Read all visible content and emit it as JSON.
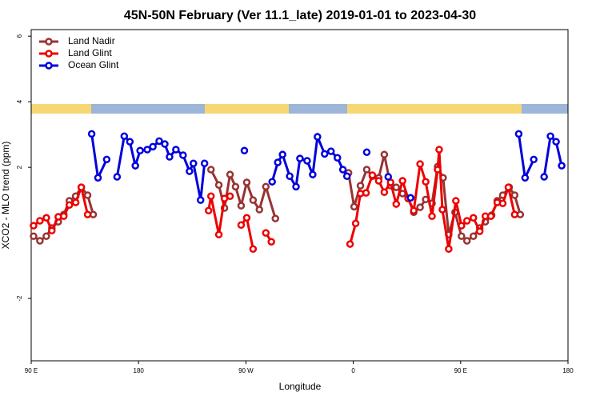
{
  "chart_data": {
    "type": "line",
    "title": "45N-50N February (Ver 11.1_late)   2019-01-01 to 2023-04-30",
    "x_label": "Longitude",
    "y_label": "XCO2 - MLO trend (ppm)",
    "xlim": [
      90,
      540
    ],
    "ylim": [
      -3.9,
      6.2
    ],
    "xticks": [
      {
        "value": 90,
        "label": "90 E"
      },
      180,
      {
        "value": 270,
        "label": "90 W"
      },
      {
        "value": 360,
        "label": "0"
      },
      {
        "value": 450,
        "label": "90 E"
      },
      {
        "value": 540,
        "label": "180"
      }
    ],
    "yticks": [
      6,
      4,
      2,
      -2
    ],
    "legend": "top-left",
    "series": [
      {
        "name": "Land Nadir",
        "color": "#993333",
        "x": [
          92,
          97.3,
          102.7,
          107.3,
          112.7,
          117.3,
          122,
          127.3,
          132,
          137.3,
          142,
          null,
          240.7,
          247.3,
          252,
          256.7,
          261.3,
          266,
          270.7,
          276,
          281.3,
          286.7,
          294.7,
          null,
          356,
          360.7,
          366,
          371.3,
          376,
          381.3,
          386,
          391.3,
          396,
          401.3,
          406,
          410.7,
          416,
          420.7,
          426,
          430.7,
          435.3,
          440,
          445.3,
          450.7,
          455.3,
          460.7,
          466,
          470.7,
          476,
          480.7,
          485.3,
          490.7,
          495.3,
          500
        ],
        "values": [
          -0.1,
          -0.24,
          -0.1,
          0.15,
          0.34,
          0.56,
          0.98,
          1.12,
          1.39,
          1.15,
          0.56,
          null,
          1.93,
          1.46,
          0.76,
          1.78,
          1.41,
          0.83,
          1.54,
          1.0,
          0.71,
          1.41,
          0.44,
          null,
          1.83,
          0.8,
          1.44,
          1.93,
          1.73,
          1.68,
          2.39,
          1.44,
          1.39,
          1.2,
          1.05,
          0.63,
          0.78,
          1.02,
          0.9,
          2.02,
          1.68,
          -0.05,
          0.63,
          -0.1,
          -0.24,
          -0.1,
          0.15,
          0.34,
          0.54,
          0.98,
          1.15,
          1.39,
          1.15,
          0.56
        ]
      },
      {
        "name": "Land Glint",
        "color": "#ee0000",
        "x": [
          92,
          97.3,
          102.7,
          107.3,
          112.7,
          117.3,
          122,
          127.3,
          132,
          137.3,
          null,
          238.7,
          240.7,
          247.3,
          252,
          256.7,
          null,
          266,
          270.7,
          276,
          null,
          286.7,
          291.3,
          null,
          357.3,
          362,
          366,
          370.7,
          376,
          381.3,
          386,
          391.3,
          396,
          401.3,
          406,
          410.7,
          416,
          420.7,
          426,
          430.7,
          432,
          434.7,
          440,
          446,
          450.7,
          455.3,
          460.7,
          466,
          470.7,
          475.3,
          480.7,
          485.3,
          490,
          495.3
        ],
        "values": [
          0.22,
          0.37,
          0.46,
          0.07,
          0.49,
          0.51,
          0.85,
          0.93,
          1.39,
          0.56,
          null,
          0.68,
          1.12,
          -0.05,
          1.05,
          1.12,
          null,
          0.24,
          0.46,
          -0.49,
          null,
          0.0,
          -0.27,
          null,
          -0.34,
          0.29,
          1.2,
          1.22,
          1.76,
          1.59,
          1.24,
          1.54,
          0.88,
          1.59,
          1.05,
          0.68,
          2.1,
          1.56,
          0.51,
          1.93,
          2.54,
          0.71,
          -0.49,
          0.98,
          0.22,
          0.37,
          0.46,
          0.05,
          0.51,
          0.51,
          0.93,
          0.9,
          1.39,
          0.56
        ]
      },
      {
        "name": "Ocean Glint",
        "color": "#0000dd",
        "x": [
          140.7,
          146,
          153.3,
          null,
          162,
          168,
          172.7,
          177.3,
          181.3,
          187.3,
          192,
          197.3,
          202,
          206,
          211.3,
          217.3,
          222.7,
          226,
          232,
          235.3,
          null,
          268.7,
          null,
          292,
          296.7,
          300.7,
          306.7,
          312,
          315.3,
          321.3,
          326,
          330,
          336,
          341.3,
          346.7,
          351.3,
          354.7,
          null,
          371.3,
          null,
          389.3,
          null,
          408,
          null,
          498.7,
          504,
          511.3,
          null,
          520,
          525.3,
          530,
          534.7
        ],
        "values": [
          3.02,
          1.68,
          2.24,
          null,
          1.71,
          2.95,
          2.78,
          2.05,
          2.51,
          2.54,
          2.63,
          2.8,
          2.71,
          2.32,
          2.54,
          2.37,
          1.88,
          2.12,
          1.0,
          2.12,
          null,
          2.51,
          null,
          1.56,
          2.15,
          2.39,
          1.73,
          1.41,
          2.27,
          2.2,
          1.78,
          2.93,
          2.41,
          2.49,
          2.29,
          1.93,
          1.73,
          null,
          2.46,
          null,
          1.71,
          null,
          1.07,
          null,
          3.02,
          1.68,
          2.24,
          null,
          1.71,
          2.95,
          2.78,
          2.05
        ]
      }
    ]
  }
}
